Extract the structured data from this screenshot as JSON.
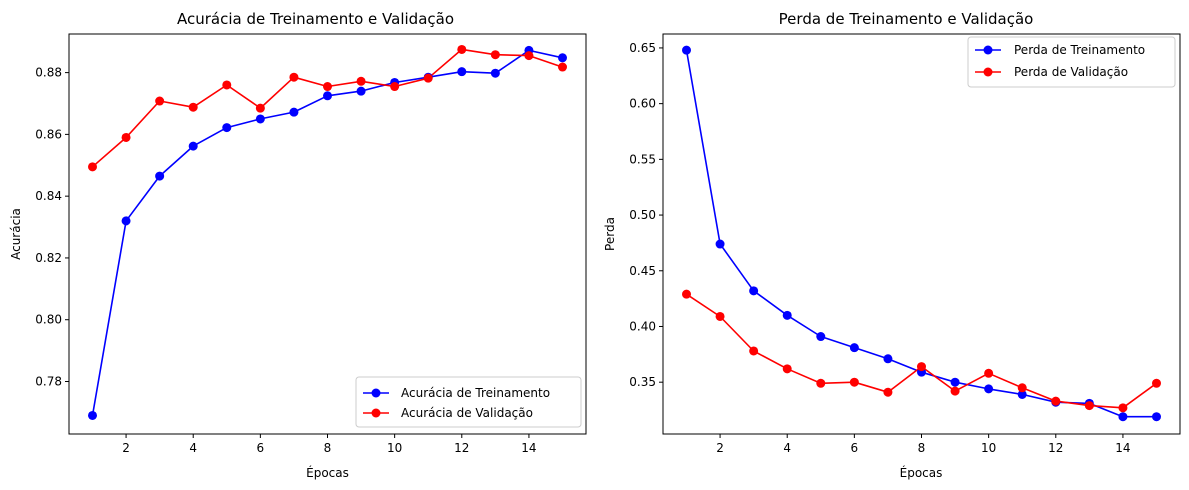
{
  "chart_data": [
    {
      "type": "line",
      "title": "Acurácia de Treinamento e Validação",
      "xlabel": "Épocas",
      "ylabel": "Acurácia",
      "xlim": [
        0.3,
        15.7
      ],
      "ylim": [
        0.763,
        0.8925
      ],
      "xticks": [
        2,
        4,
        6,
        8,
        10,
        12,
        14
      ],
      "yticks": [
        0.78,
        0.8,
        0.82,
        0.84,
        0.86,
        0.88
      ],
      "grid": false,
      "legend": "lower-right",
      "x": [
        1,
        2,
        3,
        4,
        5,
        6,
        7,
        8,
        9,
        10,
        11,
        12,
        13,
        14,
        15
      ],
      "series": [
        {
          "name": "Acurácia de Treinamento",
          "color": "#0000ff",
          "values": [
            0.769,
            0.832,
            0.8465,
            0.8562,
            0.8622,
            0.865,
            0.8672,
            0.8725,
            0.874,
            0.8768,
            0.8785,
            0.8803,
            0.8798,
            0.8872,
            0.8848
          ]
        },
        {
          "name": "Acurácia de Validação",
          "color": "#ff0000",
          "values": [
            0.8495,
            0.859,
            0.8708,
            0.8688,
            0.876,
            0.8685,
            0.8785,
            0.8755,
            0.8772,
            0.8755,
            0.8782,
            0.8875,
            0.8858,
            0.8855,
            0.8818
          ]
        }
      ]
    },
    {
      "type": "line",
      "title": "Perda de Treinamento e Validação",
      "xlabel": "Épocas",
      "ylabel": "Perda",
      "xlim": [
        0.3,
        15.7
      ],
      "ylim": [
        0.3035,
        0.6625
      ],
      "xticks": [
        2,
        4,
        6,
        8,
        10,
        12,
        14
      ],
      "yticks": [
        0.35,
        0.4,
        0.45,
        0.5,
        0.55,
        0.6,
        0.65
      ],
      "grid": false,
      "legend": "upper-right",
      "x": [
        1,
        2,
        3,
        4,
        5,
        6,
        7,
        8,
        9,
        10,
        11,
        12,
        13,
        14,
        15
      ],
      "series": [
        {
          "name": "Perda de Treinamento",
          "color": "#0000ff",
          "values": [
            0.648,
            0.474,
            0.432,
            0.41,
            0.391,
            0.381,
            0.371,
            0.359,
            0.35,
            0.344,
            0.339,
            0.332,
            0.331,
            0.319,
            0.319
          ]
        },
        {
          "name": "Perda de Validação",
          "color": "#ff0000",
          "values": [
            0.429,
            0.409,
            0.378,
            0.362,
            0.349,
            0.35,
            0.341,
            0.364,
            0.342,
            0.358,
            0.345,
            0.333,
            0.329,
            0.327,
            0.349
          ]
        }
      ]
    }
  ]
}
